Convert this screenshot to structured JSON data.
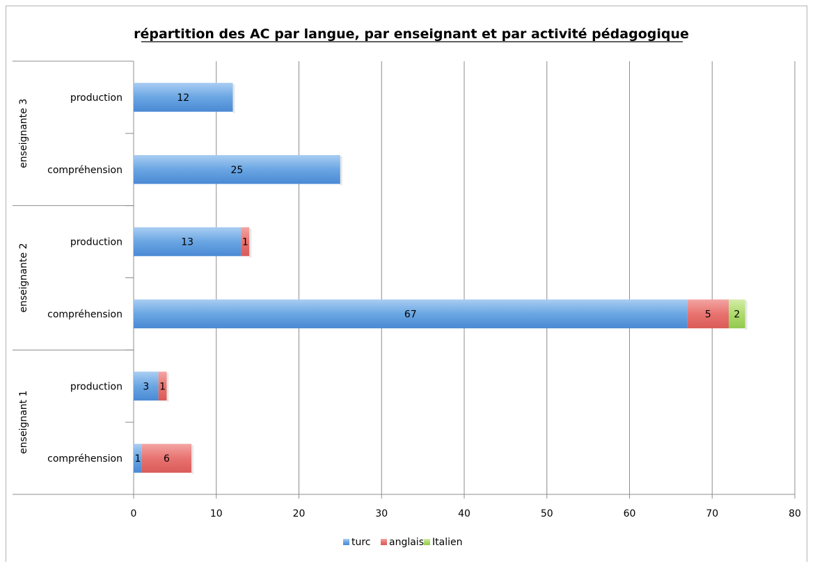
{
  "chart_data": {
    "type": "bar",
    "orientation": "horizontal",
    "stacked": true,
    "title": "répartition des AC par langue, par enseignant et par activité pédagogique",
    "xlim": [
      0,
      80
    ],
    "x_ticks": [
      0,
      10,
      20,
      30,
      40,
      50,
      60,
      70,
      80
    ],
    "grid": "vertical",
    "legend_position": "bottom",
    "groups": [
      {
        "label": "enseignant 1",
        "categories": [
          "compréhension",
          "production"
        ]
      },
      {
        "label": "enseignante 2",
        "categories": [
          "compréhension",
          "production"
        ]
      },
      {
        "label": "enseignante 3",
        "categories": [
          "compréhension",
          "production"
        ]
      }
    ],
    "series": [
      {
        "name": "turc",
        "color": "#5b9bd5",
        "values": [
          1,
          3,
          67,
          13,
          25,
          12
        ],
        "labels": [
          "1",
          "3",
          "67",
          "13",
          "25",
          "12"
        ]
      },
      {
        "name": "anglais",
        "color": "#e06666",
        "values": [
          6,
          1,
          5,
          1,
          0,
          0
        ],
        "labels": [
          "6",
          "1",
          "5",
          "1",
          "",
          ""
        ]
      },
      {
        "name": "Italien",
        "color": "#9bcf5a",
        "values": [
          0,
          0,
          2,
          0,
          0,
          0
        ],
        "labels": [
          "",
          "",
          "2",
          "",
          "",
          ""
        ]
      }
    ]
  }
}
